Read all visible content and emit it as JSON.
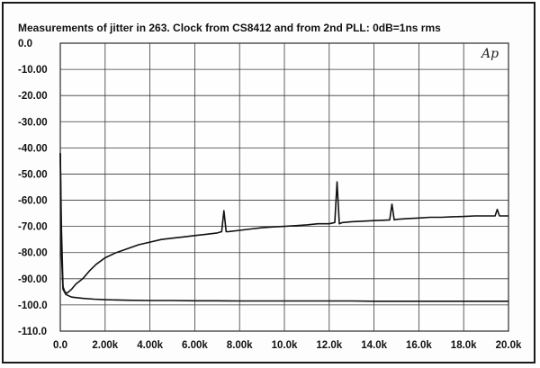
{
  "chart_data": {
    "type": "line",
    "title": "Measurements of jitter in 263. Clock from CS8412 and from 2nd PLL: 0dB=1ns rms",
    "xlabel": "",
    "ylabel": "",
    "xlim": [
      0,
      20000
    ],
    "ylim": [
      -110,
      0
    ],
    "grid": true,
    "x_ticks": [
      0,
      2000,
      4000,
      6000,
      8000,
      10000,
      12000,
      14000,
      16000,
      18000,
      20000
    ],
    "x_tick_labels": [
      "0.0",
      "2.00k",
      "4.00k",
      "6.00k",
      "8.00k",
      "10.0k",
      "12.0k",
      "14.0k",
      "16.0k",
      "18.0k",
      "20.0k"
    ],
    "y_ticks": [
      0,
      -10,
      -20,
      -30,
      -40,
      -50,
      -60,
      -70,
      -80,
      -90,
      -100,
      -110
    ],
    "y_tick_labels": [
      "0.0",
      "-10.00",
      "-20.00",
      "-30.00",
      "-40.00",
      "-50.00",
      "-60.00",
      "-70.00",
      "-80.00",
      "-90.00",
      "-100.0",
      "-110.0"
    ],
    "logo": "Ap",
    "series": [
      {
        "x": [
          0,
          50,
          120,
          200,
          300,
          500,
          700,
          1000,
          1300,
          1600,
          2000,
          2500,
          3000,
          3500,
          4000,
          4500,
          5000,
          5500,
          6000,
          6500,
          7000,
          7200,
          7300,
          7400,
          7500,
          8000,
          8500,
          9000,
          9500,
          10000,
          10500,
          11000,
          11500,
          12000,
          12250,
          12350,
          12450,
          12600,
          13000,
          13500,
          14000,
          14500,
          14700,
          14800,
          14900,
          15000,
          15500,
          16000,
          16500,
          17000,
          17500,
          18000,
          18500,
          19000,
          19400,
          19500,
          19600,
          20000
        ],
        "y": [
          -42,
          -70,
          -93,
          -95,
          -95.5,
          -94,
          -92,
          -90,
          -87,
          -84.5,
          -82,
          -80,
          -78.5,
          -77,
          -76,
          -75,
          -74.5,
          -74,
          -73.5,
          -73,
          -72.5,
          -72,
          -64,
          -72,
          -72,
          -71.5,
          -71,
          -70.5,
          -70.2,
          -70,
          -69.7,
          -69.4,
          -69,
          -69,
          -68.5,
          -53,
          -69,
          -68.5,
          -68.2,
          -68,
          -67.8,
          -67.6,
          -67.5,
          -61.5,
          -67.5,
          -67.3,
          -67,
          -66.8,
          -66.5,
          -66.5,
          -66.3,
          -66.2,
          -66,
          -66,
          -66,
          -63.5,
          -66,
          -66
        ]
      },
      {
        "x": [
          0,
          50,
          120,
          250,
          500,
          1000,
          1500,
          2000,
          3000,
          4000,
          5000,
          6000,
          7000,
          8000,
          9000,
          10000,
          11000,
          12000,
          13000,
          14000,
          15000,
          16000,
          17000,
          18000,
          19000,
          20000
        ],
        "y": [
          -42,
          -80,
          -94,
          -96,
          -97,
          -97.5,
          -97.8,
          -98,
          -98.2,
          -98.3,
          -98.3,
          -98.4,
          -98.4,
          -98.5,
          -98.5,
          -98.5,
          -98.5,
          -98.5,
          -98.5,
          -98.6,
          -98.6,
          -98.6,
          -98.6,
          -98.6,
          -98.6,
          -98.6
        ]
      }
    ]
  }
}
